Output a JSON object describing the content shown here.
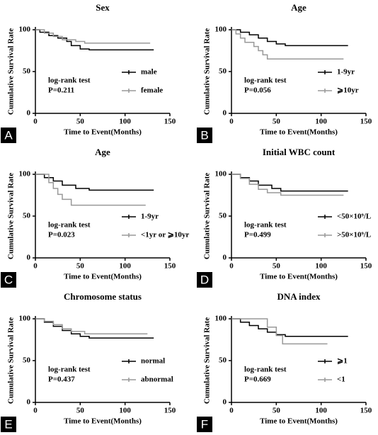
{
  "chart_data": [
    {
      "type": "line",
      "step": true,
      "panel_label": "A",
      "title": "Sex",
      "xlabel": "Time to Event(Months)",
      "ylabel": "Cumulative Survival Rate",
      "annotation": [
        "log-rank test",
        "P=0.211"
      ],
      "xlim": [
        0,
        150
      ],
      "ylim": [
        0,
        100
      ],
      "xticks": [
        0,
        50,
        100,
        150
      ],
      "yticks": [
        0,
        50,
        100
      ],
      "series": [
        {
          "name": "male",
          "color": "#000000",
          "x": [
            0,
            5,
            15,
            25,
            35,
            40,
            50,
            60,
            132
          ],
          "values": [
            100,
            97,
            93,
            90,
            86,
            81,
            77,
            76,
            76
          ]
        },
        {
          "name": "female",
          "color": "#999999",
          "x": [
            0,
            10,
            20,
            30,
            45,
            55,
            128
          ],
          "values": [
            100,
            96,
            92,
            88,
            86,
            84,
            84
          ]
        }
      ]
    },
    {
      "type": "line",
      "step": true,
      "panel_label": "B",
      "title": "Age",
      "xlabel": "Time to Event(Months)",
      "ylabel": "Cumulative Survival Rate",
      "annotation": [
        "log-rank test",
        "P=0.056"
      ],
      "xlim": [
        0,
        150
      ],
      "ylim": [
        0,
        100
      ],
      "xticks": [
        0,
        50,
        100,
        150
      ],
      "yticks": [
        0,
        50,
        100
      ],
      "series": [
        {
          "name": "1-9yr",
          "color": "#000000",
          "x": [
            0,
            10,
            20,
            30,
            40,
            50,
            60,
            130
          ],
          "values": [
            100,
            97,
            94,
            90,
            86,
            83,
            81,
            81
          ]
        },
        {
          "name": "⩾10yr",
          "color": "#999999",
          "x": [
            0,
            5,
            10,
            15,
            25,
            30,
            35,
            40,
            125
          ],
          "values": [
            100,
            95,
            90,
            85,
            80,
            75,
            70,
            65,
            65
          ]
        }
      ]
    },
    {
      "type": "line",
      "step": true,
      "panel_label": "C",
      "title": "Age",
      "xlabel": "Time to Event(Months)",
      "ylabel": "Cumulative Survival Rate",
      "annotation": [
        "log-rank test",
        "P=0.023"
      ],
      "xlim": [
        0,
        150
      ],
      "ylim": [
        0,
        100
      ],
      "xticks": [
        0,
        50,
        100,
        150
      ],
      "yticks": [
        0,
        50,
        100
      ],
      "series": [
        {
          "name": "1-9yr",
          "color": "#000000",
          "x": [
            0,
            10,
            20,
            30,
            45,
            60,
            132
          ],
          "values": [
            100,
            96,
            92,
            87,
            83,
            81,
            81
          ]
        },
        {
          "name": "<1yr or ⩾10yr",
          "color": "#999999",
          "x": [
            0,
            15,
            20,
            25,
            30,
            40,
            123
          ],
          "values": [
            100,
            90,
            83,
            76,
            70,
            63,
            63
          ]
        }
      ]
    },
    {
      "type": "line",
      "step": true,
      "panel_label": "D",
      "title": "Initial WBC count",
      "xlabel": "Time to Event(Months)",
      "ylabel": "Cumulative Survival Rate",
      "annotation": [
        "log-rank test",
        "P=0.499"
      ],
      "xlim": [
        0,
        150
      ],
      "ylim": [
        0,
        100
      ],
      "xticks": [
        0,
        50,
        100,
        150
      ],
      "yticks": [
        0,
        50,
        100
      ],
      "series": [
        {
          "name": "<50×10⁹/L",
          "color": "#000000",
          "x": [
            0,
            10,
            20,
            30,
            45,
            55,
            130
          ],
          "values": [
            100,
            96,
            92,
            87,
            83,
            80,
            80
          ]
        },
        {
          "name": ">50×10⁹/L",
          "color": "#999999",
          "x": [
            0,
            10,
            20,
            30,
            40,
            55,
            125
          ],
          "values": [
            100,
            95,
            88,
            82,
            78,
            75,
            75
          ]
        }
      ]
    },
    {
      "type": "line",
      "step": true,
      "panel_label": "E",
      "title": "Chromosome status",
      "xlabel": "Time to Event(Months)",
      "ylabel": "Cumulative Survival Rate",
      "annotation": [
        "log-rank test",
        "P=0.437"
      ],
      "xlim": [
        0,
        150
      ],
      "ylim": [
        0,
        100
      ],
      "xticks": [
        0,
        50,
        100,
        150
      ],
      "yticks": [
        0,
        50,
        100
      ],
      "series": [
        {
          "name": "normal",
          "color": "#000000",
          "x": [
            0,
            10,
            20,
            30,
            40,
            50,
            60,
            132
          ],
          "values": [
            100,
            96,
            91,
            86,
            82,
            79,
            77,
            77
          ]
        },
        {
          "name": "abnormal",
          "color": "#999999",
          "x": [
            0,
            10,
            20,
            30,
            40,
            55,
            125
          ],
          "values": [
            100,
            97,
            93,
            88,
            85,
            82,
            82
          ]
        }
      ]
    },
    {
      "type": "line",
      "step": true,
      "panel_label": "F",
      "title": "DNA index",
      "xlabel": "Time to Event(Months)",
      "ylabel": "Cumulative Survival Rate",
      "annotation": [
        "log-rank test",
        "P=0.669"
      ],
      "xlim": [
        0,
        150
      ],
      "ylim": [
        0,
        100
      ],
      "xticks": [
        0,
        50,
        100,
        150
      ],
      "yticks": [
        0,
        50,
        100
      ],
      "series": [
        {
          "name": "⩾1",
          "color": "#000000",
          "x": [
            0,
            10,
            20,
            30,
            40,
            50,
            60,
            130
          ],
          "values": [
            100,
            96,
            92,
            88,
            84,
            81,
            79,
            79
          ]
        },
        {
          "name": "<1",
          "color": "#999999",
          "x": [
            0,
            40,
            50,
            57,
            107
          ],
          "values": [
            100,
            90,
            80,
            70,
            70
          ]
        }
      ]
    }
  ]
}
